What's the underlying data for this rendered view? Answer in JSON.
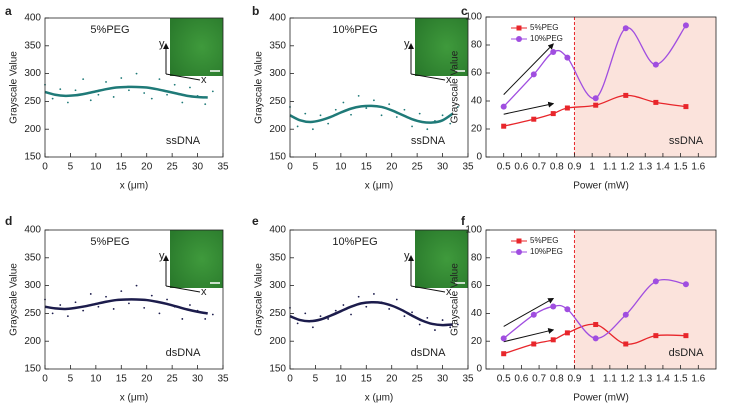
{
  "chart_data": [
    {
      "type": "scatter",
      "panel": "a",
      "text": "5%PEG",
      "label": "ssDNA",
      "inset_labels": [
        "y",
        "x"
      ],
      "xlabel": "x (μm)",
      "ylabel": "Grayscale Value",
      "xlim": [
        0,
        35
      ],
      "xticks": [
        0,
        5,
        10,
        15,
        20,
        25,
        30,
        35
      ],
      "ylim": [
        150,
        400
      ],
      "yticks": [
        150,
        200,
        250,
        300,
        350,
        400
      ],
      "color": "#1f7a78",
      "x": [
        0,
        1.5,
        3,
        4.5,
        6,
        7.5,
        9,
        10.5,
        12,
        13.5,
        15,
        16.5,
        18,
        19.5,
        21,
        22.5,
        24,
        25.5,
        27,
        28.5,
        30,
        31.5,
        33
      ],
      "values": [
        280,
        255,
        272,
        248,
        270,
        290,
        252,
        262,
        285,
        258,
        292,
        270,
        300,
        265,
        255,
        290,
        262,
        280,
        248,
        275,
        260,
        245,
        268
      ],
      "fit": {
        "x": [
          0,
          2,
          4,
          6,
          8,
          10,
          12,
          14,
          16,
          18,
          20,
          22,
          24,
          26,
          28,
          30,
          32
        ],
        "values": [
          267,
          262,
          260,
          261,
          264,
          268,
          272,
          275,
          276,
          276,
          275,
          272,
          268,
          264,
          260,
          258,
          257
        ]
      }
    },
    {
      "type": "scatter",
      "panel": "b",
      "text": "10%PEG",
      "label": "ssDNA",
      "inset_labels": [
        "y",
        "x"
      ],
      "xlabel": "x (μm)",
      "ylabel": "Grayscale Value",
      "xlim": [
        0,
        35
      ],
      "xticks": [
        0,
        5,
        10,
        15,
        20,
        25,
        30,
        35
      ],
      "ylim": [
        150,
        400
      ],
      "yticks": [
        150,
        200,
        250,
        300,
        350,
        400
      ],
      "color": "#1f7a78",
      "x": [
        0,
        1.5,
        3,
        4.5,
        6,
        7.5,
        9,
        10.5,
        12,
        13.5,
        15,
        16.5,
        18,
        19.5,
        21,
        22.5,
        24,
        25.5,
        27,
        28.5,
        30,
        31.5,
        33
      ],
      "values": [
        240,
        205,
        228,
        200,
        225,
        210,
        235,
        248,
        226,
        260,
        238,
        252,
        225,
        245,
        222,
        235,
        205,
        228,
        200,
        215,
        225,
        210,
        240
      ],
      "fit": {
        "x": [
          0,
          2,
          4,
          6,
          8,
          10,
          12,
          14,
          16,
          18,
          20,
          22,
          24,
          26,
          28,
          30,
          32
        ],
        "values": [
          225,
          216,
          213,
          216,
          222,
          230,
          237,
          241,
          242,
          240,
          234,
          226,
          218,
          213,
          212,
          216,
          228
        ]
      }
    },
    {
      "type": "line",
      "panel": "c",
      "label": "ssDNA",
      "xlabel": "Power (mW)",
      "ylabel": "Grayscale Value",
      "xlim": [
        0.4,
        1.7
      ],
      "xticks": [
        0.5,
        0.6,
        0.7,
        0.8,
        0.9,
        1.0,
        1.1,
        1.2,
        1.3,
        1.4,
        1.5,
        1.6
      ],
      "ylim": [
        0,
        100
      ],
      "yticks": [
        0,
        20,
        40,
        60,
        80,
        100
      ],
      "shade_from": 0.9,
      "legend": "upper left",
      "x": [
        0.5,
        0.67,
        0.78,
        0.86,
        1.02,
        1.19,
        1.36,
        1.53
      ],
      "series": [
        {
          "name": "5%PEG",
          "color": "#e8262b",
          "values": [
            22,
            27,
            31,
            35,
            37,
            44,
            39,
            36
          ]
        },
        {
          "name": "10%PEG",
          "color": "#a04ee0",
          "values": [
            36,
            59,
            75,
            71,
            42,
            92,
            66,
            94
          ]
        }
      ]
    },
    {
      "type": "scatter",
      "panel": "d",
      "text": "5%PEG",
      "label": "dsDNA",
      "inset_labels": [
        "y",
        "x"
      ],
      "xlabel": "x (μm)",
      "ylabel": "Grayscale Value",
      "xlim": [
        0,
        35
      ],
      "xticks": [
        0,
        5,
        10,
        15,
        20,
        25,
        30,
        35
      ],
      "ylim": [
        150,
        400
      ],
      "yticks": [
        150,
        200,
        250,
        300,
        350,
        400
      ],
      "color": "#1c1c4c",
      "x": [
        0,
        1.5,
        3,
        4.5,
        6,
        7.5,
        9,
        10.5,
        12,
        13.5,
        15,
        16.5,
        18,
        19.5,
        21,
        22.5,
        24,
        25.5,
        27,
        28.5,
        30,
        31.5,
        33
      ],
      "values": [
        275,
        250,
        265,
        245,
        270,
        255,
        285,
        262,
        280,
        258,
        290,
        268,
        300,
        260,
        282,
        250,
        275,
        262,
        240,
        265,
        255,
        240,
        248
      ],
      "fit": {
        "x": [
          0,
          2,
          4,
          6,
          8,
          10,
          12,
          14,
          16,
          18,
          20,
          22,
          24,
          26,
          28,
          30,
          32
        ],
        "values": [
          262,
          259,
          258,
          260,
          263,
          267,
          271,
          274,
          275,
          275,
          274,
          271,
          267,
          262,
          257,
          253,
          250
        ]
      }
    },
    {
      "type": "scatter",
      "panel": "e",
      "text": "10%PEG",
      "label": "dsDNA",
      "inset_labels": [
        "y",
        "x"
      ],
      "xlabel": "x (μm)",
      "ylabel": "Grayscale Value",
      "xlim": [
        0,
        35
      ],
      "xticks": [
        0,
        5,
        10,
        15,
        20,
        25,
        30,
        35
      ],
      "ylim": [
        150,
        400
      ],
      "yticks": [
        150,
        200,
        250,
        300,
        350,
        400
      ],
      "color": "#1c1c4c",
      "x": [
        0,
        1.5,
        3,
        4.5,
        6,
        7.5,
        9,
        10.5,
        12,
        13.5,
        15,
        16.5,
        18,
        19.5,
        21,
        22.5,
        24,
        25.5,
        27,
        28.5,
        30,
        31.5,
        33
      ],
      "values": [
        260,
        232,
        250,
        225,
        245,
        240,
        255,
        265,
        248,
        280,
        262,
        285,
        270,
        258,
        275,
        245,
        252,
        230,
        242,
        220,
        238,
        225,
        230
      ],
      "fit": {
        "x": [
          0,
          2,
          4,
          6,
          8,
          10,
          12,
          14,
          16,
          18,
          20,
          22,
          24,
          26,
          28,
          30,
          32
        ],
        "values": [
          245,
          238,
          236,
          239,
          246,
          254,
          262,
          268,
          270,
          269,
          264,
          256,
          246,
          237,
          231,
          229,
          230
        ]
      }
    },
    {
      "type": "line",
      "panel": "f",
      "label": "dsDNA",
      "xlabel": "Power (mW)",
      "ylabel": "Grayscale Value",
      "xlim": [
        0.4,
        1.7
      ],
      "xticks": [
        0.5,
        0.6,
        0.7,
        0.8,
        0.9,
        1.0,
        1.1,
        1.2,
        1.3,
        1.4,
        1.5,
        1.6
      ],
      "ylim": [
        0,
        100
      ],
      "yticks": [
        0,
        20,
        40,
        60,
        80,
        100
      ],
      "shade_from": 0.9,
      "legend": "upper left",
      "x": [
        0.5,
        0.67,
        0.78,
        0.86,
        1.02,
        1.19,
        1.36,
        1.53
      ],
      "series": [
        {
          "name": "5%PEG",
          "color": "#e8262b",
          "values": [
            11,
            18,
            21,
            26,
            32,
            18,
            24,
            24
          ]
        },
        {
          "name": "10%PEG",
          "color": "#a04ee0",
          "values": [
            22,
            39,
            45,
            43,
            22,
            39,
            63,
            61
          ]
        }
      ]
    }
  ]
}
